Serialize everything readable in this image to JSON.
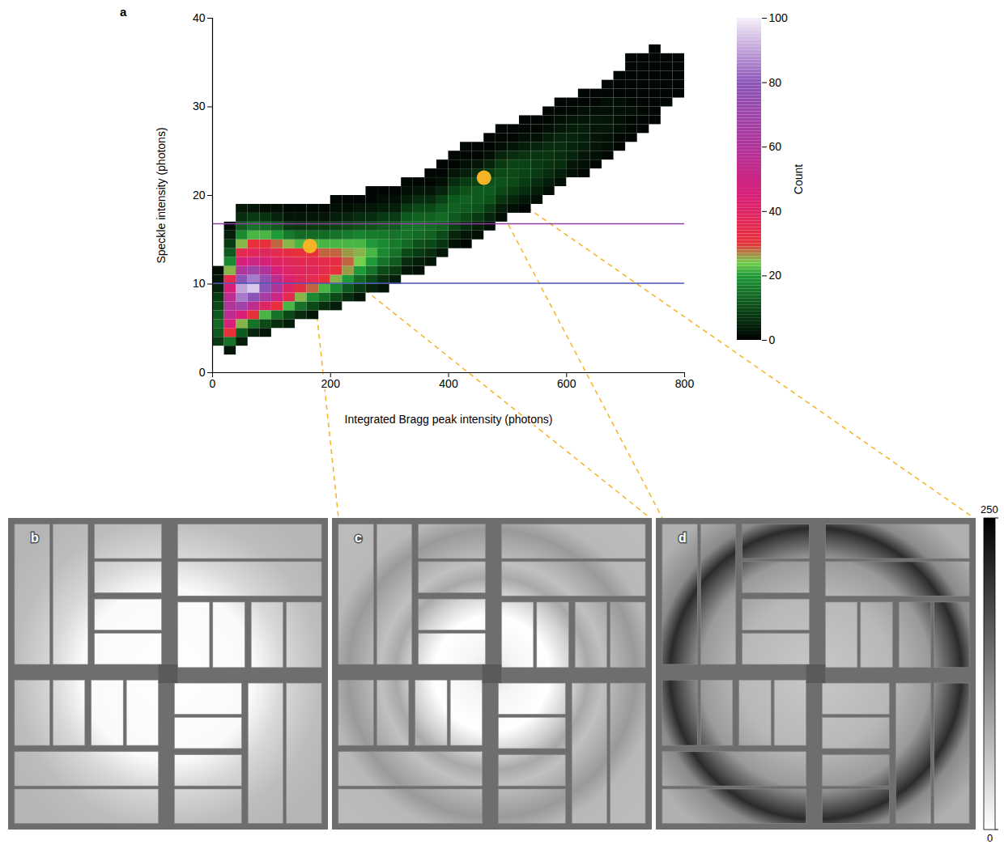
{
  "chart_data": {
    "type": "heatmap",
    "panel": "a",
    "x_label": "Integrated Bragg peak intensity (photons)",
    "y_label": "Speckle intensity (photons)",
    "xlim": [
      0,
      800
    ],
    "xticks": [
      0,
      200,
      400,
      600,
      800
    ],
    "ylim": [
      0,
      40
    ],
    "yticks": [
      0,
      10,
      20,
      30,
      40
    ],
    "bin_size": {
      "x": 20,
      "y": 1
    },
    "columns": [
      {
        "x": 0,
        "y0": 3,
        "counts": [
          8,
          12,
          14,
          12,
          10,
          8,
          5,
          3,
          2
        ]
      },
      {
        "x": 20,
        "y0": 2,
        "counts": [
          3,
          15,
          30,
          45,
          55,
          60,
          55,
          45,
          35,
          25,
          18,
          12,
          8,
          4,
          2
        ]
      },
      {
        "x": 40,
        "y0": 3,
        "counts": [
          4,
          12,
          25,
          45,
          70,
          85,
          90,
          80,
          60,
          45,
          35,
          25,
          18,
          12,
          6,
          3
        ]
      },
      {
        "x": 60,
        "y0": 4,
        "counts": [
          5,
          15,
          30,
          55,
          80,
          95,
          85,
          70,
          50,
          38,
          30,
          22,
          15,
          8,
          3
        ]
      },
      {
        "x": 80,
        "y0": 4,
        "counts": [
          3,
          10,
          22,
          40,
          65,
          80,
          75,
          60,
          45,
          38,
          30,
          22,
          14,
          7,
          2
        ]
      },
      {
        "x": 100,
        "y0": 5,
        "counts": [
          6,
          15,
          30,
          50,
          60,
          55,
          45,
          40,
          35,
          28,
          20,
          12,
          5,
          2
        ]
      },
      {
        "x": 120,
        "y0": 5,
        "counts": [
          4,
          10,
          22,
          35,
          40,
          42,
          40,
          38,
          32,
          25,
          16,
          8,
          3,
          1
        ]
      },
      {
        "x": 140,
        "y0": 6,
        "counts": [
          6,
          15,
          25,
          32,
          38,
          38,
          36,
          30,
          22,
          14,
          7,
          3,
          1
        ]
      },
      {
        "x": 160,
        "y0": 6,
        "counts": [
          3,
          10,
          18,
          28,
          35,
          38,
          36,
          30,
          22,
          14,
          8,
          3,
          1
        ]
      },
      {
        "x": 180,
        "y0": 7,
        "counts": [
          6,
          14,
          22,
          30,
          35,
          34,
          28,
          22,
          14,
          8,
          3,
          1
        ]
      },
      {
        "x": 200,
        "y0": 7,
        "counts": [
          4,
          10,
          18,
          25,
          30,
          32,
          28,
          22,
          15,
          9,
          4,
          2,
          1
        ]
      },
      {
        "x": 220,
        "y0": 8,
        "counts": [
          6,
          12,
          20,
          26,
          28,
          26,
          22,
          16,
          10,
          5,
          2,
          1
        ]
      },
      {
        "x": 240,
        "y0": 8,
        "counts": [
          3,
          8,
          14,
          20,
          24,
          25,
          22,
          17,
          11,
          6,
          3,
          1
        ]
      },
      {
        "x": 260,
        "y0": 9,
        "counts": [
          5,
          10,
          15,
          20,
          22,
          20,
          16,
          11,
          6,
          3,
          1,
          1
        ]
      },
      {
        "x": 280,
        "y0": 9,
        "counts": [
          3,
          6,
          10,
          15,
          18,
          18,
          16,
          12,
          8,
          4,
          2,
          1
        ]
      },
      {
        "x": 300,
        "y0": 10,
        "counts": [
          4,
          8,
          12,
          15,
          16,
          15,
          12,
          8,
          4,
          2,
          1
        ]
      },
      {
        "x": 320,
        "y0": 11,
        "counts": [
          3,
          6,
          10,
          14,
          15,
          15,
          12,
          8,
          4,
          2,
          1
        ]
      },
      {
        "x": 340,
        "y0": 11,
        "counts": [
          2,
          4,
          8,
          11,
          14,
          15,
          13,
          10,
          6,
          3,
          1
        ]
      },
      {
        "x": 360,
        "y0": 12,
        "counts": [
          3,
          6,
          10,
          13,
          14,
          13,
          10,
          6,
          3,
          1,
          1
        ]
      },
      {
        "x": 380,
        "y0": 13,
        "counts": [
          3,
          7,
          10,
          13,
          14,
          12,
          9,
          5,
          2,
          1,
          1
        ]
      },
      {
        "x": 400,
        "y0": 14,
        "counts": [
          2,
          5,
          9,
          12,
          13,
          12,
          9,
          6,
          3,
          1,
          1
        ]
      },
      {
        "x": 420,
        "y0": 14,
        "counts": [
          1,
          3,
          6,
          10,
          12,
          13,
          11,
          8,
          4,
          2,
          1,
          1
        ]
      },
      {
        "x": 440,
        "y0": 15,
        "counts": [
          2,
          4,
          8,
          11,
          12,
          12,
          9,
          6,
          3,
          1,
          1
        ]
      },
      {
        "x": 460,
        "y0": 16,
        "counts": [
          2,
          5,
          8,
          11,
          12,
          11,
          8,
          5,
          2,
          1,
          1
        ]
      },
      {
        "x": 480,
        "y0": 17,
        "counts": [
          2,
          4,
          7,
          10,
          11,
          10,
          8,
          5,
          2,
          1,
          1
        ]
      },
      {
        "x": 500,
        "y0": 18,
        "counts": [
          2,
          5,
          8,
          10,
          10,
          9,
          6,
          3,
          1,
          1
        ]
      },
      {
        "x": 520,
        "y0": 18,
        "counts": [
          1,
          3,
          6,
          8,
          9,
          9,
          7,
          4,
          2,
          1,
          1
        ]
      },
      {
        "x": 540,
        "y0": 19,
        "counts": [
          2,
          4,
          6,
          8,
          8,
          7,
          5,
          2,
          1,
          1
        ]
      },
      {
        "x": 560,
        "y0": 20,
        "counts": [
          2,
          4,
          6,
          7,
          7,
          6,
          4,
          2,
          1,
          1
        ]
      },
      {
        "x": 580,
        "y0": 21,
        "counts": [
          2,
          4,
          6,
          6,
          6,
          5,
          3,
          2,
          1,
          1
        ]
      },
      {
        "x": 600,
        "y0": 22,
        "counts": [
          2,
          3,
          5,
          5,
          5,
          4,
          3,
          1,
          1
        ]
      },
      {
        "x": 620,
        "y0": 22,
        "counts": [
          1,
          2,
          3,
          4,
          4,
          4,
          3,
          2,
          1,
          1
        ]
      },
      {
        "x": 640,
        "y0": 23,
        "counts": [
          1,
          2,
          3,
          3,
          3,
          3,
          2,
          1,
          1
        ]
      },
      {
        "x": 660,
        "y0": 24,
        "counts": [
          1,
          2,
          2,
          3,
          3,
          2,
          2,
          1,
          1
        ]
      },
      {
        "x": 680,
        "y0": 25,
        "counts": [
          1,
          1,
          2,
          2,
          2,
          2,
          1,
          1,
          1
        ]
      },
      {
        "x": 700,
        "y0": 26,
        "counts": [
          1,
          1,
          1,
          2,
          1,
          1,
          1,
          1,
          1,
          1
        ]
      },
      {
        "x": 720,
        "y0": 27,
        "counts": [
          1,
          1,
          1,
          1,
          1,
          1,
          1,
          1,
          1
        ]
      },
      {
        "x": 740,
        "y0": 28,
        "counts": [
          1,
          1,
          1,
          1,
          1,
          1,
          1,
          1,
          1
        ]
      },
      {
        "x": 760,
        "y0": 30,
        "counts": [
          1,
          1,
          1,
          1,
          1,
          1
        ]
      },
      {
        "x": 780,
        "y0": 31,
        "counts": [
          1,
          1,
          1,
          1,
          1
        ]
      }
    ],
    "colorbar": {
      "label": "Count",
      "range": [
        0,
        100
      ],
      "ticks": [
        0,
        20,
        40,
        60,
        80,
        100
      ]
    },
    "reference_lines": [
      {
        "y": 16.8,
        "color": "#8e3fa0"
      },
      {
        "y": 10.1,
        "color": "#4a55b8"
      }
    ],
    "highlighted_points": [
      {
        "x": 165,
        "y": 14.3,
        "color": "#f6b325",
        "panel": "c"
      },
      {
        "x": 460,
        "y": 22.0,
        "color": "#f6b325",
        "panel": "d"
      }
    ],
    "images": {
      "panels": [
        {
          "label": "b"
        },
        {
          "label": "c"
        },
        {
          "label": "d"
        }
      ],
      "colorbar": {
        "range": [
          0,
          250
        ],
        "ticks": [
          0,
          250
        ]
      }
    }
  }
}
